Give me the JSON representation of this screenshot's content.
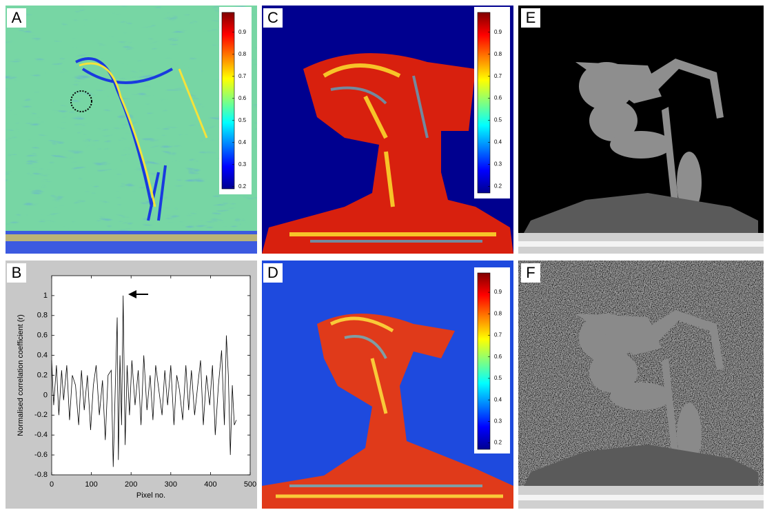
{
  "panel_labels": [
    "A",
    "B",
    "C",
    "D",
    "E",
    "F"
  ],
  "chart_data": [
    {
      "type": "colorbar",
      "colormap": "jet",
      "ylim": [
        0.19,
        0.99
      ],
      "yticks": [
        0.2,
        0.3,
        0.4,
        0.5,
        0.6,
        0.7,
        0.8,
        0.9
      ]
    },
    {
      "type": "line",
      "xlabel": "Pixel no.",
      "ylabel": "Normalised correlation coefficient (r)",
      "color": "#000000",
      "x": [
        0,
        5,
        12,
        18,
        25,
        30,
        38,
        45,
        52,
        60,
        68,
        75,
        82,
        90,
        98,
        105,
        112,
        120,
        128,
        135,
        142,
        150,
        155,
        160,
        165,
        168,
        172,
        176,
        180,
        185,
        190,
        196,
        202,
        210,
        218,
        225,
        232,
        240,
        248,
        255,
        262,
        270,
        278,
        285,
        292,
        300,
        308,
        315,
        322,
        330,
        338,
        345,
        352,
        360,
        368,
        375,
        382,
        390,
        398,
        405,
        412,
        420,
        428,
        435,
        440,
        445,
        450,
        455,
        460,
        465
      ],
      "values": [
        0.35,
        -0.1,
        0.3,
        -0.2,
        0.25,
        -0.05,
        0.3,
        -0.25,
        0.2,
        0.1,
        -0.3,
        0.25,
        -0.15,
        0.2,
        -0.35,
        0.1,
        0.3,
        -0.2,
        0.15,
        -0.45,
        0.2,
        0.25,
        -0.72,
        0.05,
        0.78,
        -0.65,
        0.4,
        -0.3,
        1.0,
        -0.5,
        0.3,
        -0.2,
        0.35,
        -0.1,
        0.25,
        -0.3,
        0.4,
        -0.15,
        0.2,
        -0.25,
        0.3,
        0.05,
        -0.2,
        0.25,
        -0.1,
        0.3,
        -0.3,
        0.2,
        0.05,
        -0.25,
        0.3,
        -0.15,
        0.25,
        -0.2,
        0.1,
        0.35,
        -0.3,
        0.2,
        -0.1,
        0.3,
        -0.4,
        0.1,
        0.45,
        -0.3,
        0.6,
        0.2,
        -0.6,
        0.1,
        -0.3,
        -0.25
      ],
      "xlim": [
        0,
        500
      ],
      "xticks": [
        0,
        100,
        200,
        300,
        400,
        500
      ],
      "ylim": [
        -0.8,
        1.2
      ],
      "yticks": [
        -0.8,
        -0.6,
        -0.4,
        -0.2,
        0,
        0.2,
        0.4,
        0.6,
        0.8,
        1
      ]
    },
    {
      "type": "colorbar",
      "colormap": "jet",
      "ylim": [
        0.17,
        0.99
      ],
      "yticks": [
        0.2,
        0.3,
        0.4,
        0.5,
        0.6,
        0.7,
        0.8,
        0.9
      ]
    },
    {
      "type": "colorbar",
      "colormap": "jet",
      "ylim": [
        0.17,
        0.99
      ],
      "yticks": [
        0.2,
        0.3,
        0.4,
        0.5,
        0.6,
        0.7,
        0.8,
        0.9
      ]
    }
  ]
}
